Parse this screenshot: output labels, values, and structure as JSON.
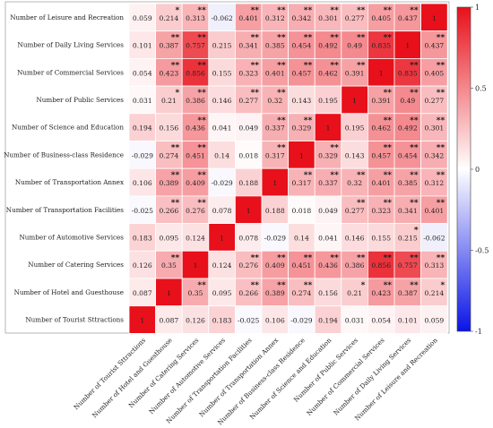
{
  "chart_data": {
    "type": "heatmap",
    "variables": [
      "Number of Tourist Sttractions",
      "Number of Hotel and Guesthouse",
      "Number of Catering Services",
      "Number of Automotive Services",
      "Number of Transportation Facilities",
      "Number of Transportation Annex",
      "Number of Business-class Residence",
      "Number of Science and Education",
      "Number of Public Services",
      "Number of Commercial Services",
      "Number of Daily Living Services",
      "Number of Leisure and Recreation"
    ],
    "matrix": [
      [
        1,
        0.087,
        0.126,
        0.183,
        -0.025,
        0.106,
        -0.029,
        0.194,
        0.031,
        0.054,
        0.101,
        0.059
      ],
      [
        0.087,
        1,
        0.35,
        0.095,
        0.266,
        0.389,
        0.274,
        0.156,
        0.21,
        0.423,
        0.387,
        0.214
      ],
      [
        0.126,
        0.35,
        1,
        0.124,
        0.276,
        0.409,
        0.451,
        0.436,
        0.386,
        0.856,
        0.757,
        0.313
      ],
      [
        0.183,
        0.095,
        0.124,
        1,
        0.078,
        -0.029,
        0.14,
        0.041,
        0.146,
        0.155,
        0.215,
        -0.062
      ],
      [
        -0.025,
        0.266,
        0.276,
        0.078,
        1,
        0.188,
        0.018,
        0.049,
        0.277,
        0.323,
        0.341,
        0.401
      ],
      [
        0.106,
        0.389,
        0.409,
        -0.029,
        0.188,
        1,
        0.317,
        0.337,
        0.32,
        0.401,
        0.385,
        0.312
      ],
      [
        -0.029,
        0.274,
        0.451,
        0.14,
        0.018,
        0.317,
        1,
        0.329,
        0.143,
        0.457,
        0.454,
        0.342
      ],
      [
        0.194,
        0.156,
        0.436,
        0.041,
        0.049,
        0.337,
        0.329,
        1,
        0.195,
        0.462,
        0.492,
        0.301
      ],
      [
        0.031,
        0.21,
        0.386,
        0.146,
        0.277,
        0.32,
        0.143,
        0.195,
        1,
        0.391,
        0.49,
        0.277
      ],
      [
        0.054,
        0.423,
        0.856,
        0.155,
        0.323,
        0.401,
        0.457,
        0.462,
        0.391,
        1,
        0.835,
        0.405
      ],
      [
        0.101,
        0.387,
        0.757,
        0.215,
        0.341,
        0.385,
        0.454,
        0.492,
        0.49,
        0.835,
        1,
        0.437
      ],
      [
        0.059,
        0.214,
        0.313,
        -0.062,
        0.401,
        0.312,
        0.342,
        0.301,
        0.277,
        0.405,
        0.437,
        1
      ]
    ],
    "significance": [
      [
        "",
        "",
        "",
        "",
        "",
        "",
        "",
        "",
        "",
        "",
        "",
        ""
      ],
      [
        "",
        "",
        "**",
        "",
        "**",
        "**",
        "**",
        "",
        "*",
        "**",
        "**",
        "*"
      ],
      [
        "",
        "**",
        "",
        "",
        "**",
        "**",
        "**",
        "**",
        "**",
        "**",
        "**",
        "**"
      ],
      [
        "",
        "",
        "",
        "",
        "",
        "",
        "",
        "",
        "",
        "",
        "*",
        ""
      ],
      [
        "",
        "**",
        "**",
        "",
        "",
        "",
        "",
        "",
        "**",
        "**",
        "**",
        "**"
      ],
      [
        "",
        "**",
        "**",
        "",
        "",
        "",
        "**",
        "**",
        "**",
        "**",
        "**",
        "**"
      ],
      [
        "",
        "**",
        "**",
        "",
        "",
        "**",
        "",
        "**",
        "",
        "**",
        "**",
        "**"
      ],
      [
        "",
        "",
        "**",
        "",
        "",
        "**",
        "**",
        "",
        "",
        "**",
        "**",
        "**"
      ],
      [
        "",
        "*",
        "**",
        "",
        "**",
        "**",
        "",
        "",
        "",
        "**",
        "**",
        "**"
      ],
      [
        "",
        "**",
        "**",
        "",
        "**",
        "**",
        "**",
        "**",
        "**",
        "",
        "**",
        "**"
      ],
      [
        "",
        "**",
        "**",
        "",
        "**",
        "**",
        "**",
        "**",
        "**",
        "**",
        "",
        "**"
      ],
      [
        "",
        "*",
        "**",
        "",
        "**",
        "**",
        "**",
        "**",
        "**",
        "**",
        "**",
        ""
      ]
    ],
    "colorbar": {
      "range": [
        -1,
        1
      ],
      "ticks": [
        "1",
        "0.5",
        "0",
        "-0.5",
        "-1"
      ],
      "colors": {
        "negative": "#0a14e6",
        "zero": "#ffffff",
        "positive": "#e8101a"
      }
    }
  }
}
